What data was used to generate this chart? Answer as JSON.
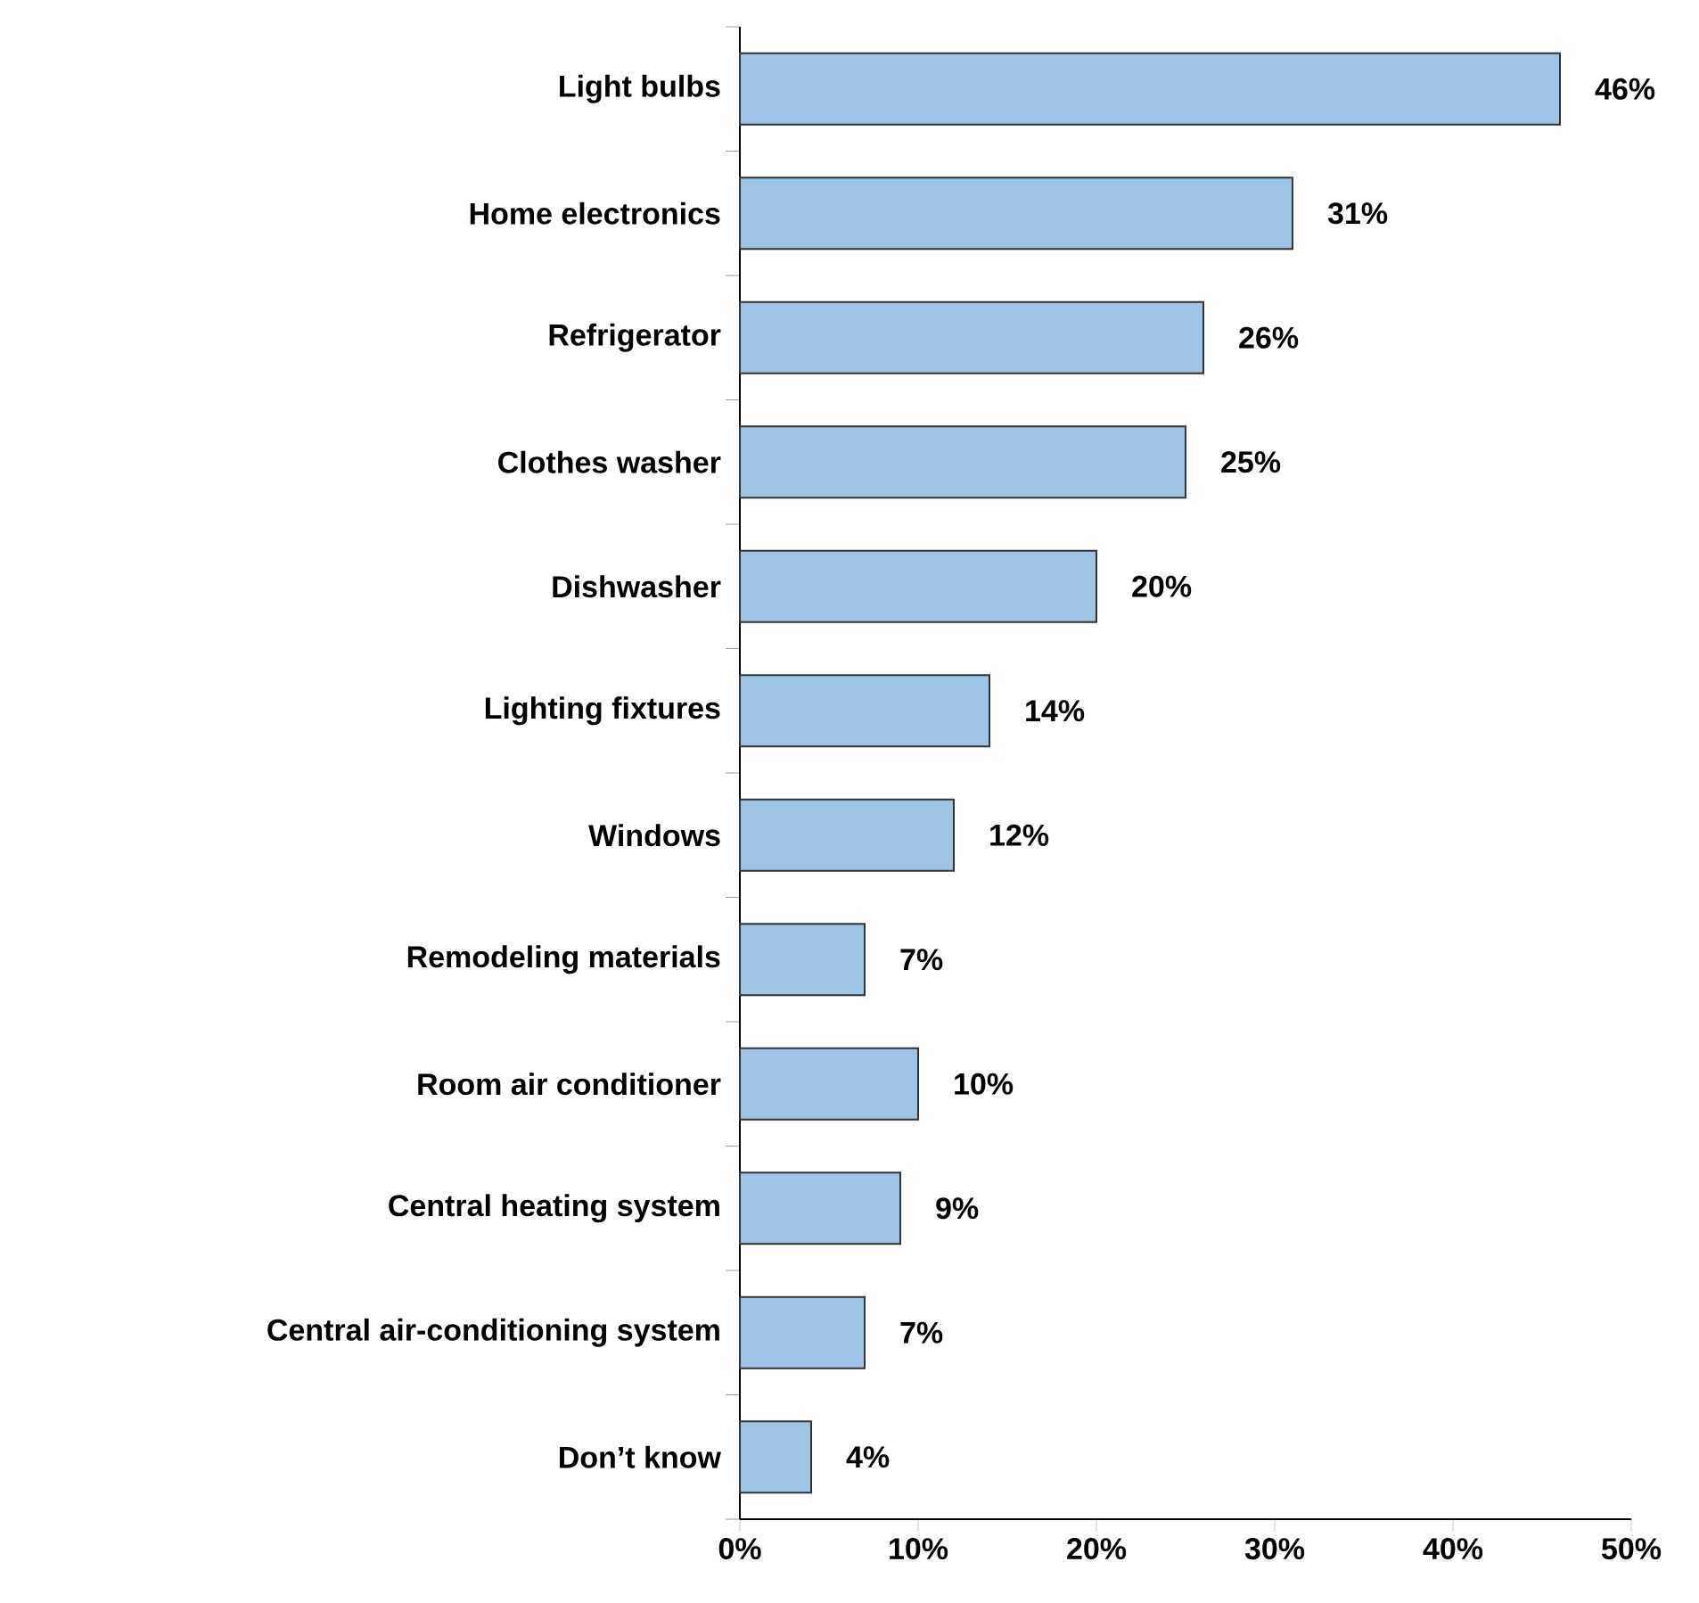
{
  "chart_data": {
    "type": "bar",
    "orientation": "horizontal",
    "categories": [
      "Light bulbs",
      "Home electronics",
      "Refrigerator",
      "Clothes washer",
      "Dishwasher",
      "Lighting fixtures",
      "Windows",
      "Remodeling materials",
      "Room air conditioner",
      "Central heating system",
      "Central air-conditioning system",
      "Don’t know"
    ],
    "values": [
      46,
      31,
      26,
      25,
      20,
      14,
      12,
      7,
      10,
      9,
      7,
      4
    ],
    "value_labels": [
      "46%",
      "31%",
      "26%",
      "25%",
      "20%",
      "14%",
      "12%",
      "7%",
      "10%",
      "9%",
      "7%",
      "4%"
    ],
    "color": "#9dc3e6",
    "xlim": [
      0,
      50
    ],
    "xticks": [
      {
        "value": 0,
        "label": "0%"
      },
      {
        "value": 10,
        "label": "10%"
      },
      {
        "value": 20,
        "label": "20%"
      },
      {
        "value": 30,
        "label": "30%"
      },
      {
        "value": 40,
        "label": "40%"
      },
      {
        "value": 50,
        "label": "50%"
      }
    ]
  }
}
